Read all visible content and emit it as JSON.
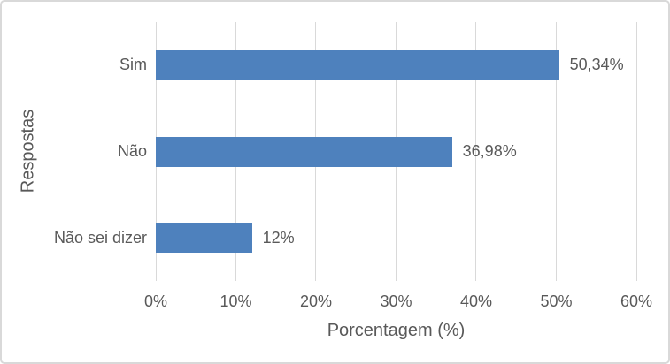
{
  "chart_data": {
    "type": "bar",
    "orientation": "horizontal",
    "title": "",
    "categories": [
      "Sim",
      "Não",
      "Não sei dizer"
    ],
    "values": [
      50.34,
      36.98,
      12
    ],
    "data_labels": [
      "50,34%",
      "36,98%",
      "12%"
    ],
    "xlabel": "Porcentagem (%)",
    "ylabel": "Respostas",
    "x_ticks": [
      "0%",
      "10%",
      "20%",
      "30%",
      "40%",
      "50%",
      "60%"
    ],
    "x_tick_values": [
      0,
      10,
      20,
      30,
      40,
      50,
      60
    ],
    "xlim": [
      0,
      60
    ],
    "grid": true,
    "legend": false,
    "colors": {
      "bar": "#4E81BD",
      "gridline": "#D9D9D9",
      "border": "#D9D9D9",
      "text": "#595959",
      "background": "#FFFFFF"
    }
  }
}
